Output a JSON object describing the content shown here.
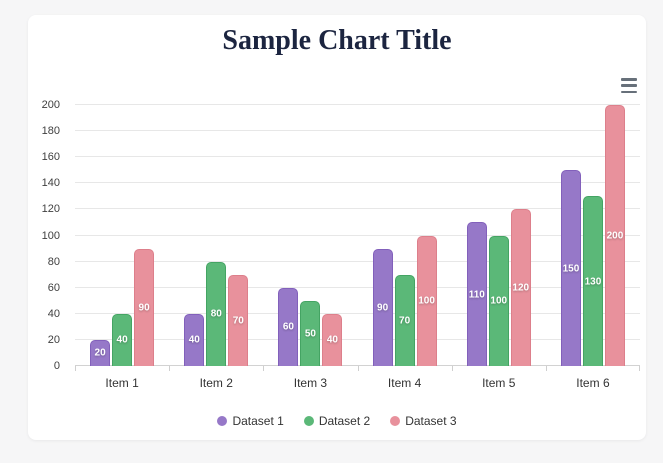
{
  "theme": {
    "page_background": "#f6f6f7",
    "card_background": "#ffffff",
    "title_color": "#1c2540",
    "grid_color": "#e7e7e7",
    "axis_line_color": "#d2d2d2",
    "axis_label_color": "#3f3f3f",
    "legend_text_color": "#333333",
    "value_label_color": "#ffffff",
    "menu_icon_color": "#67707a"
  },
  "icons": {
    "context_menu": "hamburger-icon"
  },
  "chart_data": {
    "type": "bar",
    "title": "Sample Chart Title",
    "categories": [
      "Item 1",
      "Item 2",
      "Item 3",
      "Item 4",
      "Item 5",
      "Item 6"
    ],
    "series": [
      {
        "name": "Dataset 1",
        "color": "#9678c8",
        "border_color": "#8260bb",
        "values": [
          20,
          40,
          60,
          90,
          110,
          150
        ]
      },
      {
        "name": "Dataset 2",
        "color": "#5bb878",
        "border_color": "#44a463",
        "values": [
          40,
          80,
          50,
          70,
          100,
          130
        ]
      },
      {
        "name": "Dataset 3",
        "color": "#e8919c",
        "border_color": "#dd7f8b",
        "values": [
          90,
          70,
          40,
          100,
          120,
          200
        ]
      }
    ],
    "xlabel": "",
    "ylabel": "",
    "ylim": [
      0,
      200
    ],
    "y_tick_step": 20,
    "y_ticks": [
      "0",
      "20",
      "40",
      "60",
      "80",
      "100",
      "120",
      "140",
      "160",
      "180",
      "200"
    ],
    "grid": true,
    "legend_position": "bottom",
    "value_labels": true
  }
}
